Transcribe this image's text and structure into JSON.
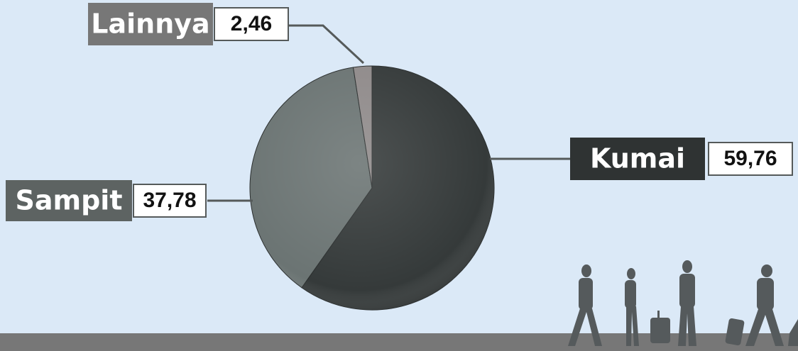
{
  "chart_data": {
    "type": "pie",
    "categories": [
      "Kumai",
      "Sampit",
      "Lainnya"
    ],
    "values": [
      59.76,
      37.78,
      2.46
    ],
    "value_labels": [
      "59,76",
      "37,78",
      "2,46"
    ],
    "colors": [
      "#353a3a",
      "#6b7473",
      "#8f8a8a"
    ]
  }
}
